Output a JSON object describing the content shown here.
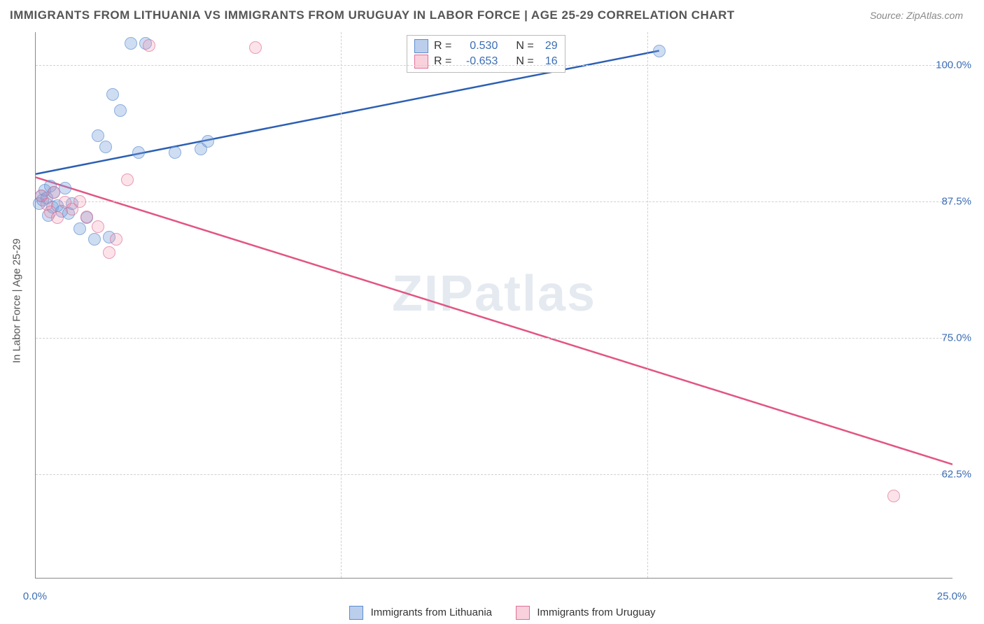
{
  "title": "IMMIGRANTS FROM LITHUANIA VS IMMIGRANTS FROM URUGUAY IN LABOR FORCE | AGE 25-29 CORRELATION CHART",
  "source_label": "Source: ZipAtlas.com",
  "watermark": "ZIPatlas",
  "ylabel": "In Labor Force | Age 25-29",
  "chart": {
    "type": "scatter",
    "background_color": "#ffffff",
    "grid_color": "#d0d0d0",
    "axis_color": "#888888",
    "label_color": "#555555",
    "tick_color": "#3b6db5",
    "tick_fontsize": 15,
    "title_fontsize": 17,
    "xlim": [
      0,
      25
    ],
    "ylim": [
      53,
      103
    ],
    "xticks": [
      {
        "v": 0.0,
        "label": "0.0%"
      },
      {
        "v": 25.0,
        "label": "25.0%"
      }
    ],
    "xgrid": [
      8.33,
      16.67
    ],
    "yticks": [
      {
        "v": 62.5,
        "label": "62.5%"
      },
      {
        "v": 75.0,
        "label": "75.0%"
      },
      {
        "v": 87.5,
        "label": "87.5%"
      },
      {
        "v": 100.0,
        "label": "100.0%"
      }
    ],
    "series": [
      {
        "id": "a",
        "name": "Immigrants from Lithuania",
        "marker_color_fill": "rgba(120,160,220,0.5)",
        "marker_color_stroke": "#5a8cd0",
        "line_color": "#2c5fb3",
        "line_width": 2.5,
        "R": "0.530",
        "N": "29",
        "trend": {
          "x1": 0,
          "y1": 90.0,
          "x2": 17.0,
          "y2": 101.3
        },
        "points": [
          {
            "x": 0.1,
            "y": 87.3
          },
          {
            "x": 0.15,
            "y": 88.0
          },
          {
            "x": 0.2,
            "y": 87.6
          },
          {
            "x": 0.25,
            "y": 88.5
          },
          {
            "x": 0.3,
            "y": 87.8
          },
          {
            "x": 0.35,
            "y": 86.2
          },
          {
            "x": 0.4,
            "y": 88.9
          },
          {
            "x": 0.45,
            "y": 87.0
          },
          {
            "x": 0.5,
            "y": 88.3
          },
          {
            "x": 0.6,
            "y": 87.1
          },
          {
            "x": 0.7,
            "y": 86.6
          },
          {
            "x": 0.8,
            "y": 88.7
          },
          {
            "x": 0.9,
            "y": 86.4
          },
          {
            "x": 1.0,
            "y": 87.3
          },
          {
            "x": 1.2,
            "y": 85.0
          },
          {
            "x": 1.4,
            "y": 86.0
          },
          {
            "x": 1.6,
            "y": 84.0
          },
          {
            "x": 1.7,
            "y": 93.5
          },
          {
            "x": 1.9,
            "y": 92.5
          },
          {
            "x": 2.0,
            "y": 84.2
          },
          {
            "x": 2.1,
            "y": 97.3
          },
          {
            "x": 2.3,
            "y": 95.8
          },
          {
            "x": 2.6,
            "y": 102.0
          },
          {
            "x": 2.8,
            "y": 92.0
          },
          {
            "x": 3.0,
            "y": 102.0
          },
          {
            "x": 3.8,
            "y": 92.0
          },
          {
            "x": 4.5,
            "y": 92.3
          },
          {
            "x": 4.7,
            "y": 93.0
          },
          {
            "x": 17.0,
            "y": 101.3
          }
        ]
      },
      {
        "id": "b",
        "name": "Immigrants from Uruguay",
        "marker_color_fill": "rgba(240,140,170,0.35)",
        "marker_color_stroke": "#e07095",
        "line_color": "#e25582",
        "line_width": 2.5,
        "R": "-0.653",
        "N": "16",
        "trend": {
          "x1": 0,
          "y1": 89.7,
          "x2": 25.0,
          "y2": 63.4
        },
        "points": [
          {
            "x": 0.15,
            "y": 88.0
          },
          {
            "x": 0.3,
            "y": 87.2
          },
          {
            "x": 0.4,
            "y": 86.5
          },
          {
            "x": 0.5,
            "y": 88.3
          },
          {
            "x": 0.6,
            "y": 86.0
          },
          {
            "x": 0.8,
            "y": 87.4
          },
          {
            "x": 1.0,
            "y": 86.8
          },
          {
            "x": 1.2,
            "y": 87.5
          },
          {
            "x": 1.4,
            "y": 86.1
          },
          {
            "x": 1.7,
            "y": 85.2
          },
          {
            "x": 2.0,
            "y": 82.8
          },
          {
            "x": 2.2,
            "y": 84.0
          },
          {
            "x": 2.5,
            "y": 89.5
          },
          {
            "x": 3.1,
            "y": 101.8
          },
          {
            "x": 6.0,
            "y": 101.6
          },
          {
            "x": 23.4,
            "y": 60.5
          }
        ]
      }
    ],
    "legend_stats_label_R": "R =",
    "legend_stats_label_N": "N ="
  },
  "bottom_legend": {
    "a": "Immigrants from Lithuania",
    "b": "Immigrants from Uruguay"
  }
}
